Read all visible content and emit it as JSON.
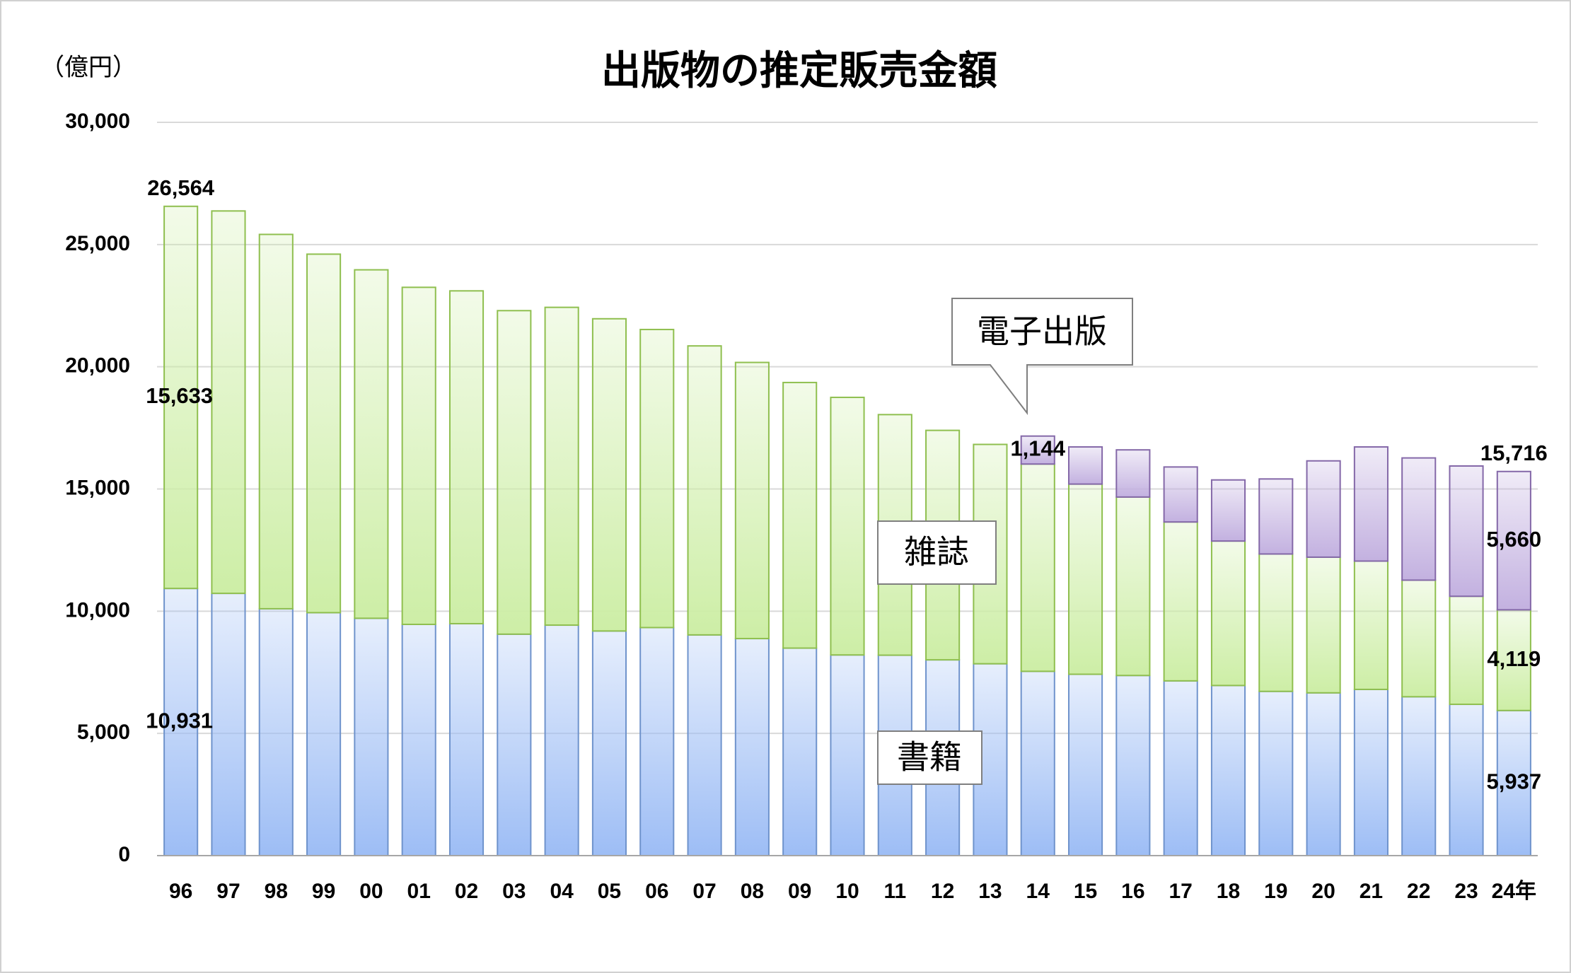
{
  "chart_data": {
    "type": "stacked_bar",
    "title": "出版物の推定販売金額",
    "y_label": "（億円）",
    "categories": [
      "96",
      "97",
      "98",
      "99",
      "00",
      "01",
      "02",
      "03",
      "04",
      "05",
      "06",
      "07",
      "08",
      "09",
      "10",
      "11",
      "12",
      "13",
      "14",
      "15",
      "16",
      "17",
      "18",
      "19",
      "20",
      "21",
      "22",
      "23",
      "24年"
    ],
    "series": [
      {
        "name": "書籍",
        "color": "#9dbdf5",
        "edgecolor": "#6f93cc",
        "values": [
          10931,
          10730,
          10100,
          9940,
          9710,
          9460,
          9490,
          9060,
          9430,
          9190,
          9330,
          9030,
          8880,
          8490,
          8210,
          8200,
          8010,
          7850,
          7540,
          7420,
          7370,
          7150,
          6960,
          6720,
          6660,
          6800,
          6500,
          6190,
          5937
        ],
        "value_labels": [
          "10,931",
          null,
          null,
          null,
          null,
          null,
          null,
          null,
          null,
          null,
          null,
          null,
          null,
          null,
          null,
          null,
          null,
          null,
          null,
          null,
          null,
          null,
          null,
          null,
          null,
          null,
          null,
          null,
          "5,937"
        ]
      },
      {
        "name": "雑誌",
        "color": "#cdeea6",
        "edgecolor": "#8fbf4f",
        "values": [
          15633,
          15644,
          15315,
          14667,
          14256,
          13790,
          13615,
          13236,
          13001,
          12774,
          12195,
          11823,
          11297,
          10866,
          10538,
          9842,
          9388,
          8973,
          8480,
          7780,
          7300,
          6500,
          5910,
          5620,
          5550,
          5250,
          4770,
          4420,
          4119
        ],
        "value_labels": [
          "15,633",
          null,
          null,
          null,
          null,
          null,
          null,
          null,
          null,
          null,
          null,
          null,
          null,
          null,
          null,
          null,
          null,
          null,
          null,
          null,
          null,
          null,
          null,
          null,
          null,
          null,
          null,
          null,
          "4,119"
        ]
      },
      {
        "name": "電子出版",
        "color": "#c3b1e0",
        "edgecolor": "#8468a8",
        "values": [
          null,
          null,
          null,
          null,
          null,
          null,
          null,
          null,
          null,
          null,
          null,
          null,
          null,
          null,
          null,
          null,
          null,
          null,
          1144,
          1520,
          1930,
          2250,
          2500,
          3070,
          3940,
          4670,
          5000,
          5330,
          5660
        ],
        "value_labels": [
          null,
          null,
          null,
          null,
          null,
          null,
          null,
          null,
          null,
          null,
          null,
          null,
          null,
          null,
          null,
          null,
          null,
          null,
          "1,144",
          null,
          null,
          null,
          null,
          null,
          null,
          null,
          null,
          null,
          "5,660"
        ]
      }
    ],
    "annotations": [
      {
        "x": "96",
        "label": "26,564",
        "value": 26564
      },
      {
        "x": "24年",
        "label": "15,716",
        "value": 15716
      }
    ],
    "ylim": [
      0,
      30000
    ],
    "yticks": [
      0,
      {
        "value": 5000,
        "label": "5,000"
      },
      {
        "value": 10000,
        "label": "10,000"
      },
      {
        "value": 15000,
        "label": "15,000"
      },
      {
        "value": 20000,
        "label": "20,000"
      },
      {
        "value": 25000,
        "label": "25,000"
      },
      {
        "value": 30000,
        "label": "30,000"
      }
    ],
    "grid": true
  }
}
